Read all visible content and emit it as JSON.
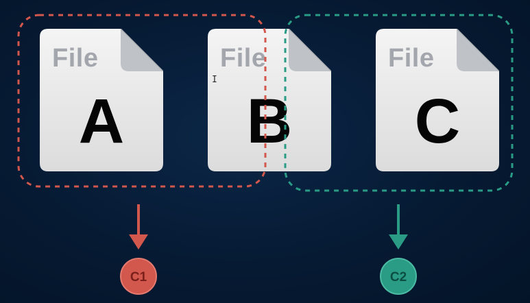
{
  "files": [
    {
      "id": "a",
      "label": "File",
      "letter": "A"
    },
    {
      "id": "b",
      "label": "File",
      "letter": "B"
    },
    {
      "id": "c",
      "label": "File",
      "letter": "C"
    }
  ],
  "groups": [
    {
      "id": "c1",
      "label": "C1",
      "color": "#d2574c",
      "members": [
        "A",
        "B"
      ]
    },
    {
      "id": "c2",
      "label": "C2",
      "color": "#2a9c86",
      "members": [
        "B",
        "C"
      ]
    }
  ],
  "colors": {
    "background": "#061a33",
    "file_sheet": "#ececec",
    "file_word": "#a3a7ad",
    "letter": "#050505"
  },
  "icons": {
    "file": "document-icon",
    "cursor": "text-cursor-icon",
    "arrow": "arrow-down-icon"
  }
}
